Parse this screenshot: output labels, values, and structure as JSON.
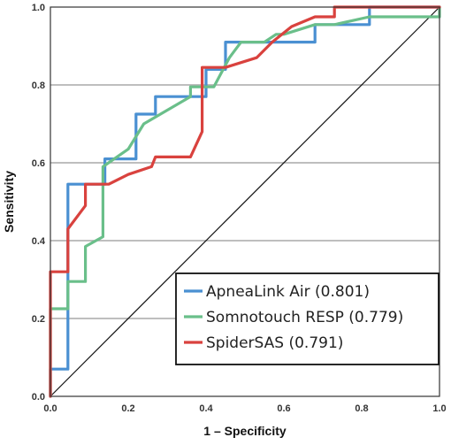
{
  "chart_data": {
    "type": "line",
    "title": "",
    "xlabel": "1 – Specificity",
    "ylabel": "Sensitivity",
    "xlim": [
      0,
      1
    ],
    "ylim": [
      0,
      1
    ],
    "x_ticks": [
      "0.0",
      "0.2",
      "0.4",
      "0.6",
      "0.8",
      "1.0"
    ],
    "y_ticks": [
      "0.0",
      "0.2",
      "0.4",
      "0.6",
      "0.8",
      "1.0"
    ],
    "grid": "horizontal",
    "legend_position": "bottom-right",
    "reference_line": {
      "type": "diagonal",
      "x": [
        0,
        1
      ],
      "y": [
        0,
        1
      ]
    },
    "series": [
      {
        "name": "ApneaLink Air (0.801)",
        "color": "#4a90d2",
        "x": [
          0.0,
          0.0,
          0.045,
          0.045,
          0.14,
          0.14,
          0.22,
          0.22,
          0.27,
          0.27,
          0.4,
          0.4,
          0.45,
          0.45,
          0.68,
          0.68,
          0.82,
          0.82,
          1.0
        ],
        "y": [
          0.0,
          0.07,
          0.07,
          0.545,
          0.545,
          0.61,
          0.61,
          0.725,
          0.725,
          0.77,
          0.77,
          0.84,
          0.84,
          0.91,
          0.91,
          0.955,
          0.955,
          1.0,
          1.0
        ]
      },
      {
        "name": "Somnotouch RESP (0.779)",
        "color": "#6abf8a",
        "x": [
          0.0,
          0.0,
          0.045,
          0.045,
          0.09,
          0.09,
          0.135,
          0.135,
          0.2,
          0.24,
          0.36,
          0.36,
          0.42,
          0.46,
          0.49,
          0.55,
          0.58,
          0.6,
          0.68,
          0.73,
          0.82,
          1.0,
          1.0
        ],
        "y": [
          0.0,
          0.225,
          0.225,
          0.295,
          0.295,
          0.385,
          0.41,
          0.59,
          0.635,
          0.7,
          0.77,
          0.795,
          0.795,
          0.87,
          0.91,
          0.91,
          0.93,
          0.93,
          0.955,
          0.955,
          0.975,
          0.975,
          1.0
        ]
      },
      {
        "name": "SpiderSAS (0.791)",
        "color": "#d9423e",
        "x": [
          0.0,
          0.0,
          0.045,
          0.045,
          0.09,
          0.09,
          0.15,
          0.2,
          0.26,
          0.27,
          0.36,
          0.39,
          0.39,
          0.45,
          0.53,
          0.57,
          0.62,
          0.68,
          0.68,
          0.73,
          0.73,
          1.0
        ],
        "y": [
          0.0,
          0.32,
          0.32,
          0.43,
          0.49,
          0.545,
          0.545,
          0.57,
          0.59,
          0.615,
          0.615,
          0.68,
          0.845,
          0.845,
          0.87,
          0.91,
          0.95,
          0.975,
          0.975,
          0.975,
          1.0,
          1.0
        ]
      }
    ]
  }
}
